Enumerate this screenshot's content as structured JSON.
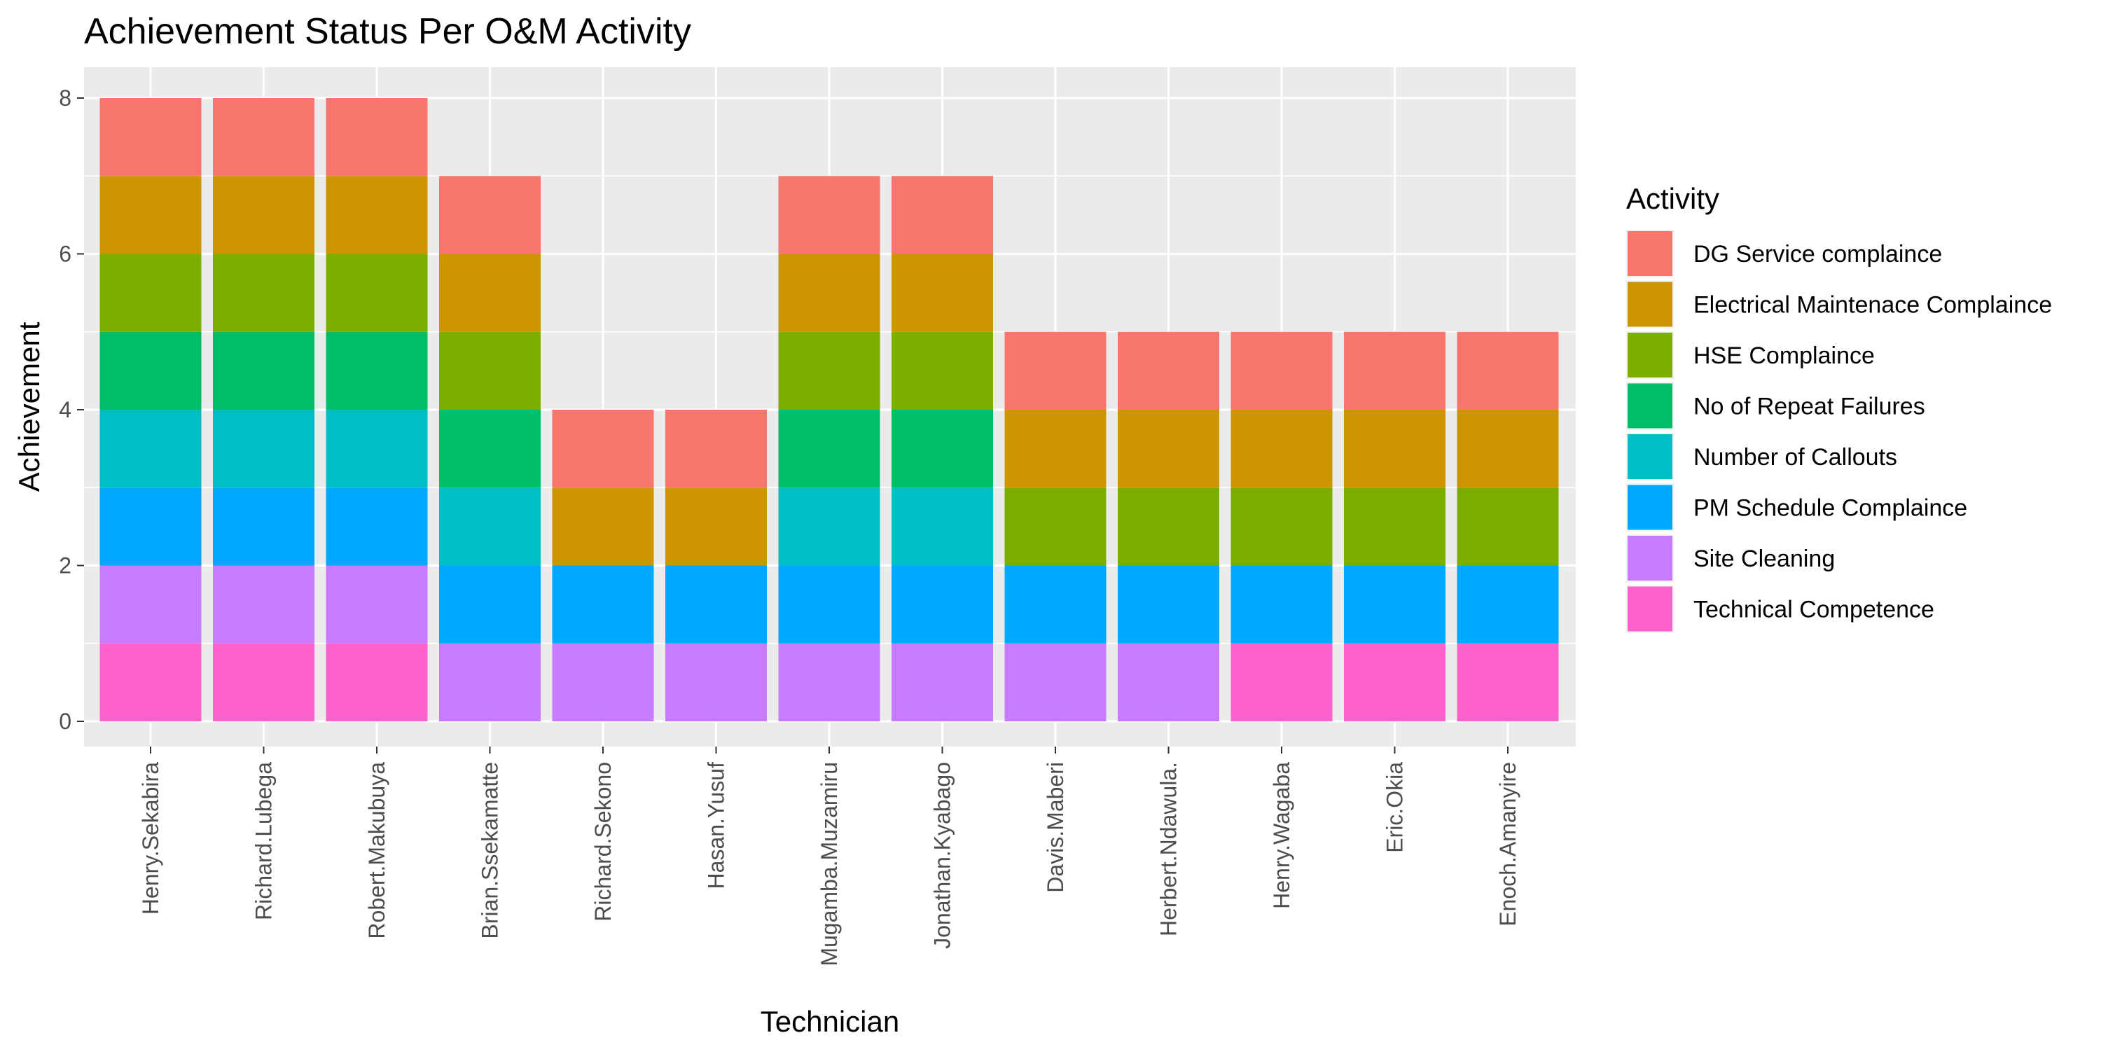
{
  "chart_data": {
    "type": "bar",
    "stacked": true,
    "title": "Achievement Status Per O&M Activity",
    "xlabel": "Technician",
    "ylabel": "Achievement",
    "ylim": [
      0,
      8.4
    ],
    "yticks": [
      0,
      2,
      4,
      6,
      8
    ],
    "grid": true,
    "legend_position": "right",
    "legend_title": "Activity",
    "categories": [
      "Henry.Sekabira",
      "Richard.Lubega",
      "Robert.Makubuya",
      "Brian.Ssekamatte",
      "Richard.Sekono",
      "Hasan.Yusuf",
      "Mugamba.Muzamiru",
      "Jonathan.Kyabago",
      "Davis.Maberi",
      "Herbert.Ndawula.",
      "Henry.Wagaba",
      "Eric.Okia",
      "Enoch.Amanyire"
    ],
    "series": [
      {
        "name": "DG Service complaince",
        "color": "#F8766D",
        "values": [
          1,
          1,
          1,
          1,
          1,
          1,
          1,
          1,
          1,
          1,
          1,
          1,
          1
        ]
      },
      {
        "name": "Electrical Maintenace Complaince",
        "color": "#CD9600",
        "values": [
          1,
          1,
          1,
          1,
          1,
          1,
          1,
          1,
          1,
          1,
          1,
          1,
          1
        ]
      },
      {
        "name": "HSE Complaince",
        "color": "#7CAE00",
        "values": [
          1,
          1,
          1,
          1,
          0,
          0,
          1,
          1,
          1,
          1,
          1,
          1,
          1
        ]
      },
      {
        "name": "No of Repeat Failures",
        "color": "#00BE67",
        "values": [
          1,
          1,
          1,
          1,
          0,
          0,
          1,
          1,
          0,
          0,
          0,
          0,
          0
        ]
      },
      {
        "name": "Number of Callouts",
        "color": "#00BFC4",
        "values": [
          1,
          1,
          1,
          1,
          0,
          0,
          1,
          1,
          0,
          0,
          0,
          0,
          0
        ]
      },
      {
        "name": "PM Schedule Complaince",
        "color": "#00A9FF",
        "values": [
          1,
          1,
          1,
          1,
          1,
          1,
          1,
          1,
          1,
          1,
          1,
          1,
          1
        ]
      },
      {
        "name": "Site Cleaning",
        "color": "#C77CFF",
        "values": [
          1,
          1,
          1,
          1,
          1,
          1,
          1,
          1,
          1,
          1,
          0,
          0,
          0
        ]
      },
      {
        "name": "Technical Competence",
        "color": "#FF61CC",
        "values": [
          1,
          1,
          1,
          0,
          0,
          0,
          0,
          0,
          0,
          0,
          1,
          1,
          1
        ]
      }
    ]
  }
}
